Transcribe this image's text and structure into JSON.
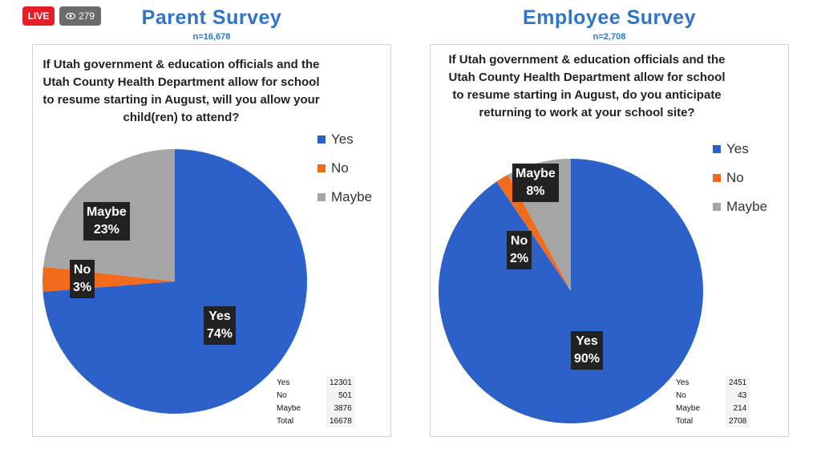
{
  "badges": {
    "live": "LIVE",
    "viewers": "279"
  },
  "colors": {
    "yes": "#2b61c9",
    "no": "#f26a1b",
    "maybe": "#a5a5a5",
    "title": "#2e74c9"
  },
  "chart_data": [
    {
      "type": "pie",
      "title": "Parent Survey",
      "subtitle": "n=16,678",
      "question": "If Utah government & education officials and the Utah County Health Department allow for school to resume starting in August, will you allow your child(ren) to attend?",
      "categories": [
        "Yes",
        "No",
        "Maybe"
      ],
      "values": [
        12301,
        501,
        3876
      ],
      "percent_labels": [
        "74%",
        "3%",
        "23%"
      ],
      "legend": [
        "Yes",
        "No",
        "Maybe"
      ],
      "legend_position": "right",
      "table": {
        "rows": [
          [
            "Yes",
            "12301"
          ],
          [
            "No",
            "501"
          ],
          [
            "Maybe",
            "3876"
          ],
          [
            "Total",
            "16678"
          ]
        ]
      }
    },
    {
      "type": "pie",
      "title": "Employee Survey",
      "subtitle": "n=2,708",
      "question": "If Utah government & education officials and the Utah County Health Department allow for school to resume starting in August, do you anticipate returning to work at your school site?",
      "categories": [
        "Yes",
        "No",
        "Maybe"
      ],
      "values": [
        2451,
        43,
        214
      ],
      "percent_labels": [
        "90%",
        "2%",
        "8%"
      ],
      "legend": [
        "Yes",
        "No",
        "Maybe"
      ],
      "legend_position": "right",
      "table": {
        "rows": [
          [
            "Yes",
            "2451"
          ],
          [
            "No",
            "43"
          ],
          [
            "Maybe",
            "214"
          ],
          [
            "Total",
            "2708"
          ]
        ]
      }
    }
  ]
}
